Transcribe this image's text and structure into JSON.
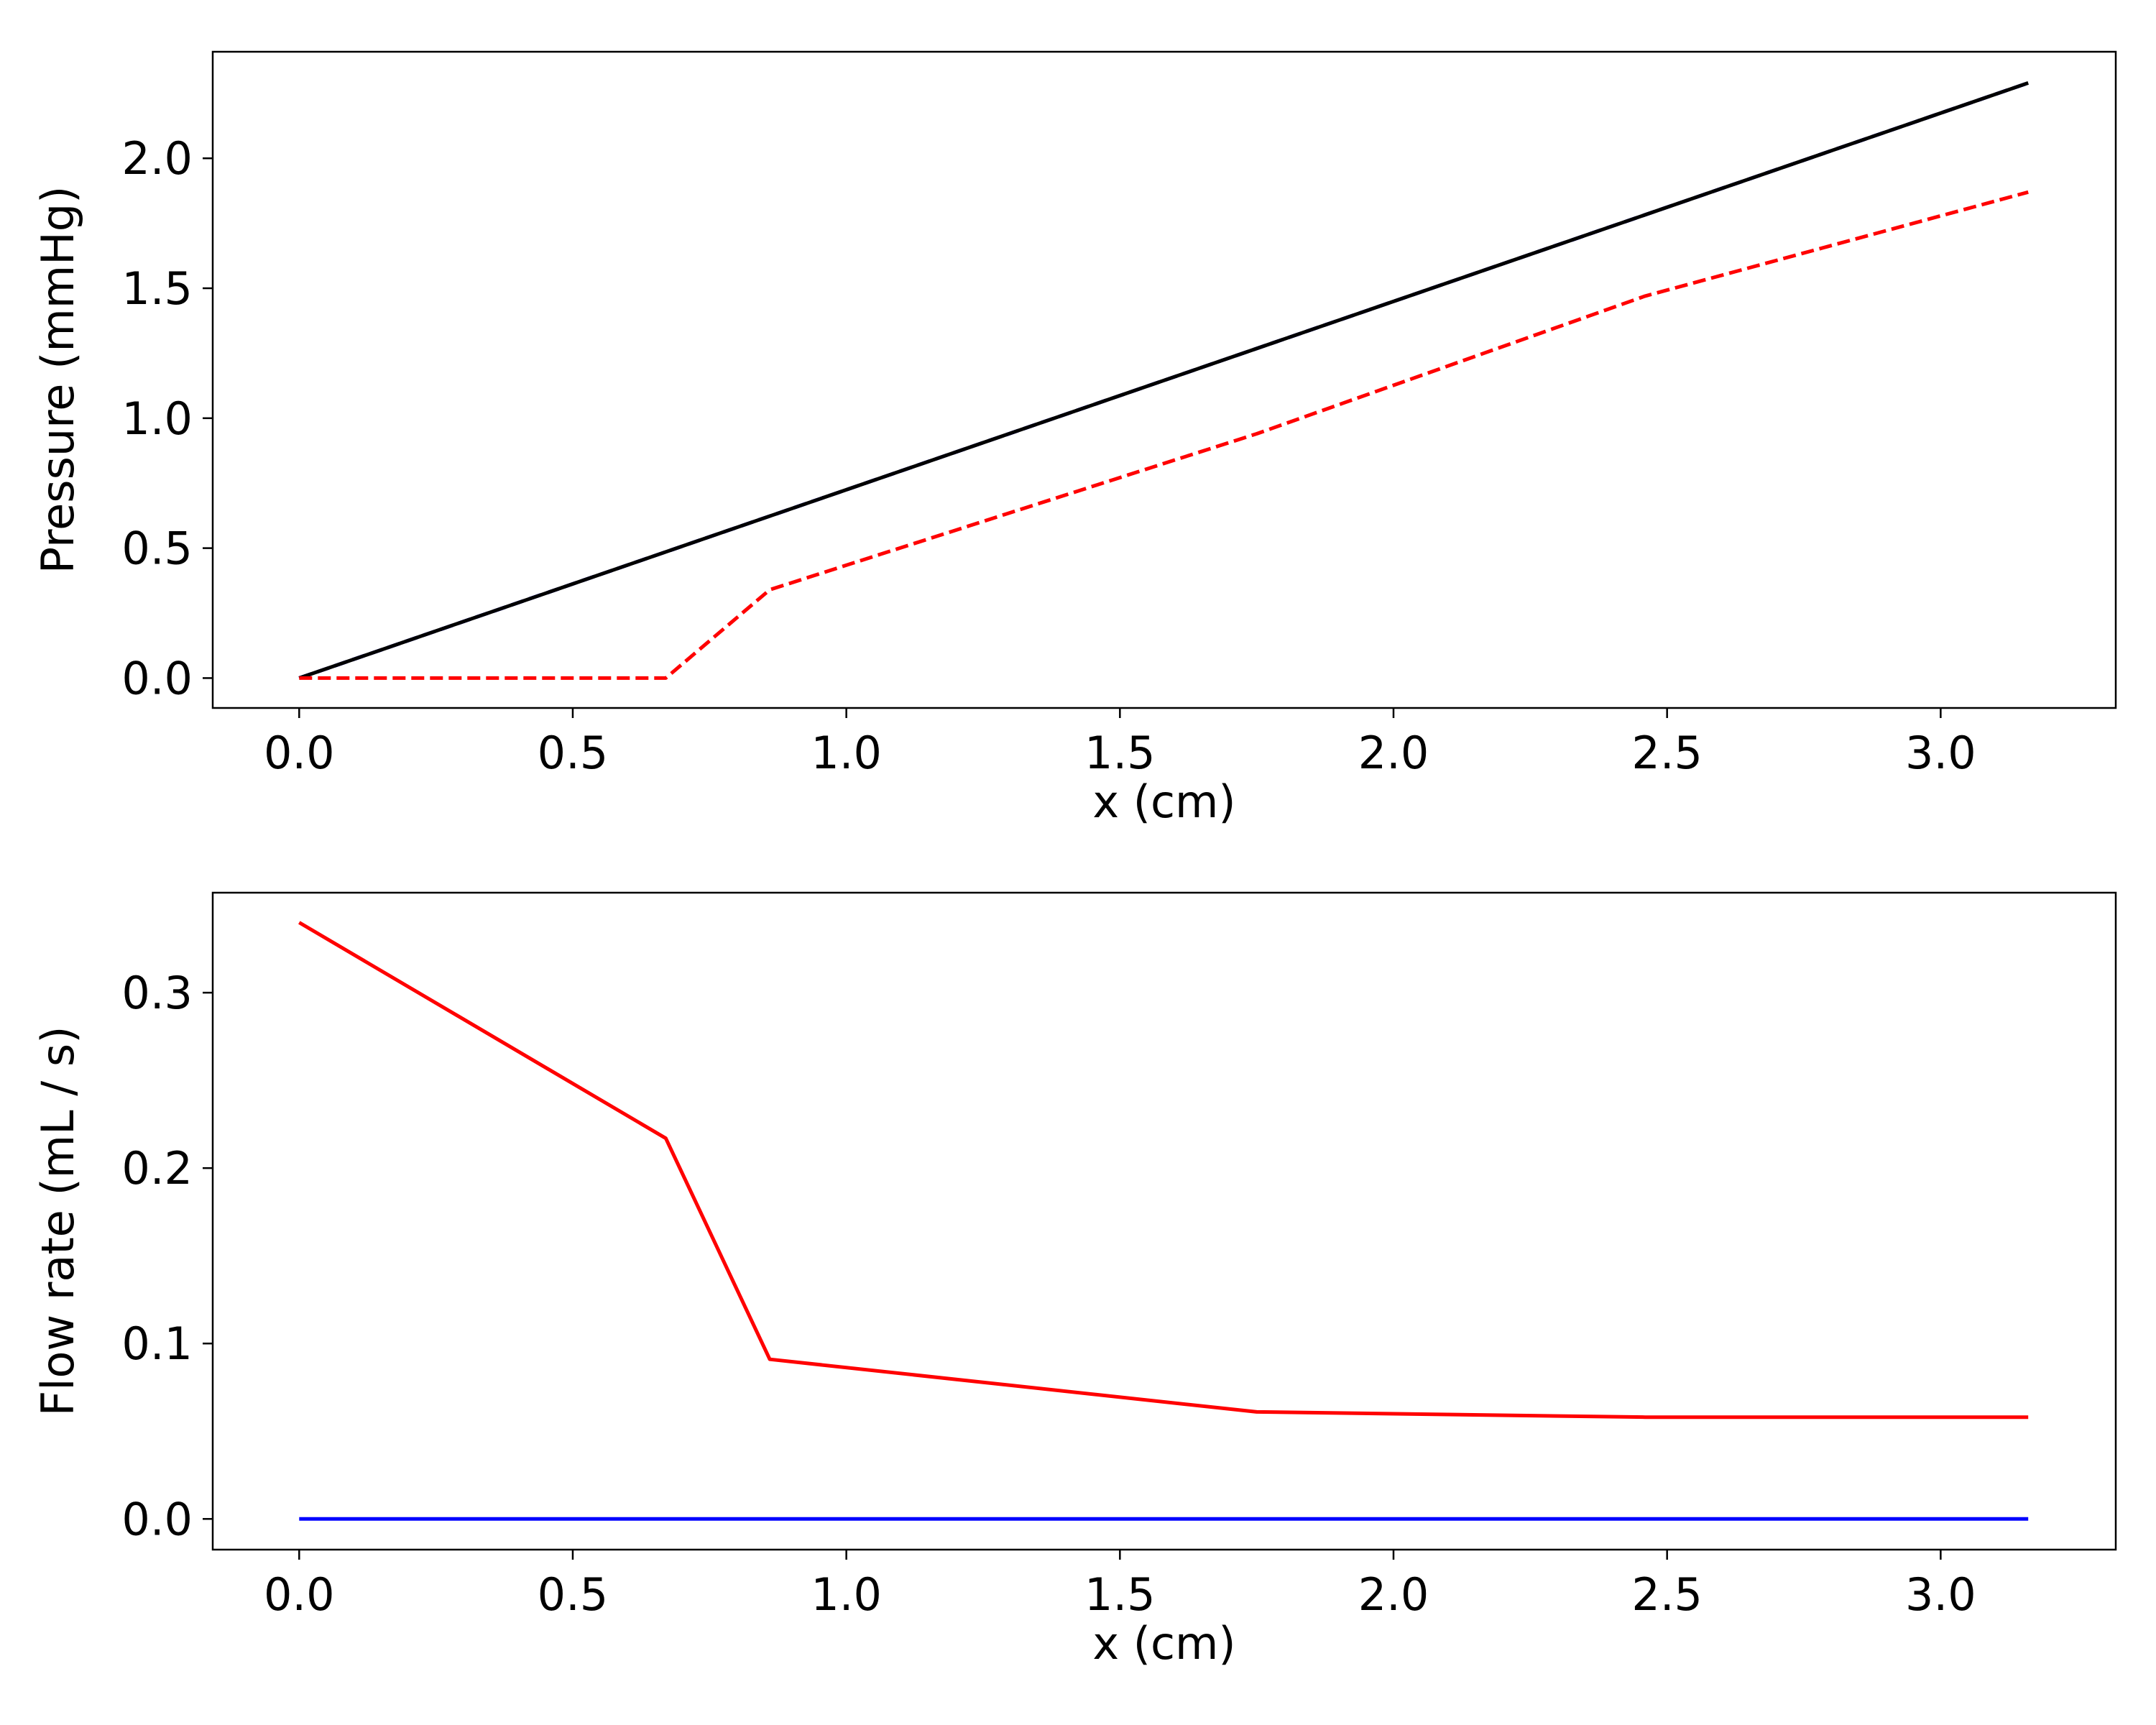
{
  "chart_data": [
    {
      "type": "line",
      "title": "",
      "xlabel": "x (cm)",
      "ylabel": "Pressure (mmHg)",
      "xlim": [
        -0.158,
        3.32
      ],
      "ylim": [
        -0.115,
        2.41
      ],
      "xticks": [
        0.0,
        0.5,
        1.0,
        1.5,
        2.0,
        2.5,
        3.0
      ],
      "xtick_labels": [
        "0.0",
        "0.5",
        "1.0",
        "1.5",
        "2.0",
        "2.5",
        "3.0"
      ],
      "yticks": [
        0.0,
        0.5,
        1.0,
        1.5,
        2.0
      ],
      "ytick_labels": [
        "0.0",
        "0.5",
        "1.0",
        "1.5",
        "2.0"
      ],
      "grid": false,
      "series": [
        {
          "color": "#0000ff",
          "linestyle": "dashed",
          "x": [
            0.0,
            3.16
          ],
          "y": [
            0.0,
            2.29
          ]
        },
        {
          "color": "#000000",
          "linestyle": "solid",
          "x": [
            0.0,
            3.16
          ],
          "y": [
            0.0,
            2.29
          ]
        },
        {
          "color": "#ff0000",
          "linestyle": "dashed",
          "x": [
            0.0,
            0.67,
            0.86,
            1.75,
            2.46,
            3.16
          ],
          "y": [
            0.0,
            0.0,
            0.34,
            0.94,
            1.47,
            1.87
          ]
        }
      ]
    },
    {
      "type": "line",
      "title": "",
      "xlabel": "x (cm)",
      "ylabel": "Flow rate (mL / s)",
      "xlim": [
        -0.158,
        3.32
      ],
      "ylim": [
        -0.0175,
        0.357
      ],
      "xticks": [
        0.0,
        0.5,
        1.0,
        1.5,
        2.0,
        2.5,
        3.0
      ],
      "xtick_labels": [
        "0.0",
        "0.5",
        "1.0",
        "1.5",
        "2.0",
        "2.5",
        "3.0"
      ],
      "yticks": [
        0.0,
        0.1,
        0.2,
        0.3
      ],
      "ytick_labels": [
        "0.0",
        "0.1",
        "0.2",
        "0.3"
      ],
      "grid": false,
      "series": [
        {
          "color": "#ff0000",
          "linestyle": "solid",
          "x": [
            0.0,
            0.67,
            0.86,
            1.75,
            2.46,
            3.16
          ],
          "y": [
            0.34,
            0.217,
            0.091,
            0.061,
            0.058,
            0.058
          ]
        },
        {
          "color": "#0000ff",
          "linestyle": "solid",
          "x": [
            0.0,
            3.16
          ],
          "y": [
            0.0,
            0.0
          ]
        }
      ]
    }
  ]
}
